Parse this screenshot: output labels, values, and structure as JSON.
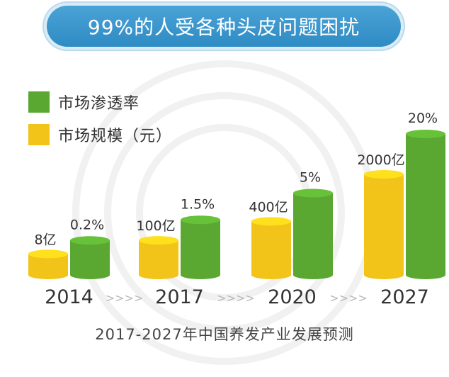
{
  "title": "99%的人受各种头皮问题困扰",
  "legend": [
    {
      "label": "市场渗透率",
      "color": "#5aa832"
    },
    {
      "label": "市场规模（元）",
      "color": "#f2c318"
    }
  ],
  "separator": ">>>>",
  "footer": "2017-2027年中国养发产业发展预测",
  "chart_data": {
    "type": "bar",
    "categories": [
      "2014",
      "2017",
      "2020",
      "2027"
    ],
    "series": [
      {
        "name": "市场规模（元）",
        "values": [
          8,
          100,
          400,
          2000
        ],
        "labels": [
          "8亿",
          "100亿",
          "400亿",
          "2000亿"
        ],
        "color": "#f2c318"
      },
      {
        "name": "市场渗透率",
        "values": [
          0.2,
          1.5,
          5,
          20
        ],
        "labels": [
          "0.2%",
          "1.5%",
          "5%",
          "20%"
        ],
        "color": "#5aa832"
      }
    ],
    "title": "99%的人受各种头皮问题困扰",
    "xlabel": "",
    "ylabel": ""
  }
}
